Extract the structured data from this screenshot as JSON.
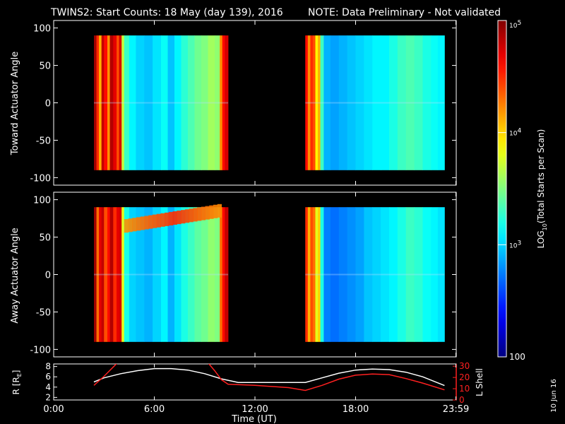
{
  "header": {
    "title": "TWINS2: Start Counts: 18 May (day 139), 2016",
    "note": "NOTE: Data Preliminary - Not validated"
  },
  "colors": {
    "background": "#000000",
    "text": "#ffffff",
    "note": "#ff0000",
    "r_line": "#ffffff",
    "l_line": "#ff2020"
  },
  "x_axis": {
    "label": "Time (UT)",
    "range_hours": [
      0,
      24
    ],
    "ticks": [
      {
        "value": 0,
        "label": "0:00"
      },
      {
        "value": 6,
        "label": "6:00"
      },
      {
        "value": 12,
        "label": "12:00"
      },
      {
        "value": 18,
        "label": "18:00"
      },
      {
        "value": 23.98,
        "label": "23:59"
      }
    ]
  },
  "side_stamp": "10 Jun 16",
  "colorbar": {
    "label": "LOG10(Total Starts per Scan)",
    "label_parts": {
      "a": "LOG",
      "sub": "10",
      "b": "(Total Starts per Scan)"
    },
    "range_log": [
      2,
      5
    ],
    "ticks": [
      {
        "log": 5,
        "label_base": "10",
        "label_exp": "5"
      },
      {
        "log": 4,
        "label_base": "10",
        "label_exp": "4"
      },
      {
        "log": 3,
        "label_base": "10",
        "label_exp": "3"
      },
      {
        "log": 2,
        "label_base": "100",
        "label_exp": ""
      }
    ]
  },
  "chart_data": [
    {
      "type": "heatmap",
      "name": "top-panel",
      "ylabel": "Toward Actuator Angle",
      "ylim": [
        -110,
        110
      ],
      "yticks": [
        100,
        50,
        0,
        -50,
        -100
      ],
      "x_unit": "hours UT",
      "value_unit": "log10 starts per scan",
      "y_extent": [
        -90,
        90
      ],
      "segments": [
        {
          "x_range": [
            2.4,
            10.4
          ],
          "columns": [
            {
              "x": [
                2.4,
                2.55
              ],
              "v": 4.9
            },
            {
              "x": [
                2.55,
                2.7
              ],
              "v": 4.5
            },
            {
              "x": [
                2.7,
                2.85
              ],
              "v": 4.1
            },
            {
              "x": [
                2.85,
                3.0
              ],
              "v": 4.8
            },
            {
              "x": [
                3.0,
                3.2
              ],
              "v": 4.6
            },
            {
              "x": [
                3.2,
                3.35
              ],
              "v": 4.2
            },
            {
              "x": [
                3.35,
                3.55
              ],
              "v": 4.85
            },
            {
              "x": [
                3.55,
                3.75
              ],
              "v": 4.7
            },
            {
              "x": [
                3.75,
                3.9
              ],
              "v": 4.4
            },
            {
              "x": [
                3.9,
                4.05
              ],
              "v": 4.75
            },
            {
              "x": [
                4.05,
                4.2
              ],
              "v": 3.7
            },
            {
              "x": [
                4.2,
                4.5
              ],
              "v": 3.3
            },
            {
              "x": [
                4.5,
                4.9
              ],
              "v": 3.1
            },
            {
              "x": [
                4.9,
                5.4
              ],
              "v": 3.0
            },
            {
              "x": [
                5.4,
                5.9
              ],
              "v": 2.95
            },
            {
              "x": [
                5.9,
                6.4
              ],
              "v": 3.05
            },
            {
              "x": [
                6.4,
                6.8
              ],
              "v": 3.15
            },
            {
              "x": [
                6.8,
                7.2
              ],
              "v": 2.95
            },
            {
              "x": [
                7.2,
                7.6
              ],
              "v": 3.1
            },
            {
              "x": [
                7.6,
                8.0
              ],
              "v": 3.25
            },
            {
              "x": [
                8.0,
                8.4
              ],
              "v": 3.35
            },
            {
              "x": [
                8.4,
                8.8
              ],
              "v": 3.45
            },
            {
              "x": [
                8.8,
                9.2
              ],
              "v": 3.5
            },
            {
              "x": [
                9.2,
                9.6
              ],
              "v": 3.6
            },
            {
              "x": [
                9.6,
                9.9
              ],
              "v": 3.55
            },
            {
              "x": [
                9.9,
                10.05
              ],
              "v": 4.2
            },
            {
              "x": [
                10.05,
                10.2
              ],
              "v": 4.6
            },
            {
              "x": [
                10.2,
                10.4
              ],
              "v": 4.75
            }
          ]
        },
        {
          "x_range": [
            15.0,
            23.3
          ],
          "columns": [
            {
              "x": [
                15.0,
                15.15
              ],
              "v": 4.6
            },
            {
              "x": [
                15.15,
                15.3
              ],
              "v": 4.2
            },
            {
              "x": [
                15.3,
                15.45
              ],
              "v": 4.5
            },
            {
              "x": [
                15.45,
                15.6
              ],
              "v": 4.4
            },
            {
              "x": [
                15.6,
                15.75
              ],
              "v": 3.9
            },
            {
              "x": [
                15.75,
                15.9
              ],
              "v": 4.1
            },
            {
              "x": [
                15.9,
                16.1
              ],
              "v": 3.3
            },
            {
              "x": [
                16.1,
                16.5
              ],
              "v": 2.9
            },
            {
              "x": [
                16.5,
                17.0
              ],
              "v": 2.85
            },
            {
              "x": [
                17.0,
                17.5
              ],
              "v": 2.9
            },
            {
              "x": [
                17.5,
                18.0
              ],
              "v": 2.95
            },
            {
              "x": [
                18.0,
                18.5
              ],
              "v": 3.0
            },
            {
              "x": [
                18.5,
                19.0
              ],
              "v": 3.05
            },
            {
              "x": [
                19.0,
                19.5
              ],
              "v": 3.1
            },
            {
              "x": [
                19.5,
                20.0
              ],
              "v": 3.1
            },
            {
              "x": [
                20.0,
                20.5
              ],
              "v": 3.2
            },
            {
              "x": [
                20.5,
                21.0
              ],
              "v": 3.3
            },
            {
              "x": [
                21.0,
                21.5
              ],
              "v": 3.35
            },
            {
              "x": [
                21.5,
                22.0
              ],
              "v": 3.3
            },
            {
              "x": [
                22.0,
                22.5
              ],
              "v": 3.2
            },
            {
              "x": [
                22.5,
                22.9
              ],
              "v": 3.15
            },
            {
              "x": [
                22.9,
                23.3
              ],
              "v": 3.1
            }
          ]
        }
      ]
    },
    {
      "type": "heatmap",
      "name": "middle-panel",
      "ylabel": "Away Actuator Angle",
      "ylim": [
        -110,
        110
      ],
      "yticks": [
        100,
        50,
        0,
        -50,
        -100
      ],
      "x_unit": "hours UT",
      "value_unit": "log10 starts per scan",
      "y_extent": [
        -90,
        90
      ],
      "segments": [
        {
          "x_range": [
            2.4,
            10.4
          ],
          "columns": [
            {
              "x": [
                2.4,
                2.55
              ],
              "v": 4.9
            },
            {
              "x": [
                2.55,
                2.7
              ],
              "v": 4.3
            },
            {
              "x": [
                2.7,
                2.85
              ],
              "v": 4.7
            },
            {
              "x": [
                2.85,
                3.0
              ],
              "v": 4.8
            },
            {
              "x": [
                3.0,
                3.2
              ],
              "v": 4.4
            },
            {
              "x": [
                3.2,
                3.35
              ],
              "v": 4.6
            },
            {
              "x": [
                3.35,
                3.55
              ],
              "v": 4.85
            },
            {
              "x": [
                3.55,
                3.75
              ],
              "v": 4.5
            },
            {
              "x": [
                3.75,
                3.9
              ],
              "v": 4.7
            },
            {
              "x": [
                3.9,
                4.05
              ],
              "v": 4.75
            },
            {
              "x": [
                4.05,
                4.2
              ],
              "v": 3.8
            },
            {
              "x": [
                4.2,
                4.5
              ],
              "v": 3.2
            },
            {
              "x": [
                4.5,
                4.9
              ],
              "v": 3.0
            },
            {
              "x": [
                4.9,
                5.4
              ],
              "v": 2.95
            },
            {
              "x": [
                5.4,
                5.9
              ],
              "v": 2.9
            },
            {
              "x": [
                5.9,
                6.4
              ],
              "v": 3.0
            },
            {
              "x": [
                6.4,
                6.8
              ],
              "v": 3.1
            },
            {
              "x": [
                6.8,
                7.2
              ],
              "v": 2.9
            },
            {
              "x": [
                7.2,
                7.6
              ],
              "v": 3.05
            },
            {
              "x": [
                7.6,
                8.0
              ],
              "v": 3.2
            },
            {
              "x": [
                8.0,
                8.4
              ],
              "v": 3.3
            },
            {
              "x": [
                8.4,
                8.8
              ],
              "v": 3.4
            },
            {
              "x": [
                8.8,
                9.2
              ],
              "v": 3.45
            },
            {
              "x": [
                9.2,
                9.6
              ],
              "v": 3.55
            },
            {
              "x": [
                9.6,
                9.9
              ],
              "v": 3.5
            },
            {
              "x": [
                9.9,
                10.05
              ],
              "v": 4.3
            },
            {
              "x": [
                10.05,
                10.2
              ],
              "v": 4.6
            },
            {
              "x": [
                10.2,
                10.4
              ],
              "v": 4.8
            }
          ]
        },
        {
          "x_range": [
            15.0,
            23.3
          ],
          "columns": [
            {
              "x": [
                15.0,
                15.15
              ],
              "v": 4.5
            },
            {
              "x": [
                15.15,
                15.3
              ],
              "v": 4.1
            },
            {
              "x": [
                15.3,
                15.45
              ],
              "v": 4.4
            },
            {
              "x": [
                15.45,
                15.6
              ],
              "v": 4.3
            },
            {
              "x": [
                15.6,
                15.75
              ],
              "v": 3.8
            },
            {
              "x": [
                15.75,
                15.9
              ],
              "v": 4.0
            },
            {
              "x": [
                15.9,
                16.1
              ],
              "v": 3.2
            },
            {
              "x": [
                16.1,
                16.5
              ],
              "v": 2.75
            },
            {
              "x": [
                16.5,
                17.0
              ],
              "v": 2.7
            },
            {
              "x": [
                17.0,
                17.5
              ],
              "v": 2.75
            },
            {
              "x": [
                17.5,
                18.0
              ],
              "v": 2.8
            },
            {
              "x": [
                18.0,
                18.5
              ],
              "v": 2.85
            },
            {
              "x": [
                18.5,
                19.0
              ],
              "v": 2.95
            },
            {
              "x": [
                19.0,
                19.5
              ],
              "v": 3.0
            },
            {
              "x": [
                19.5,
                20.0
              ],
              "v": 3.05
            },
            {
              "x": [
                20.0,
                20.5
              ],
              "v": 3.1
            },
            {
              "x": [
                20.5,
                21.0
              ],
              "v": 3.2
            },
            {
              "x": [
                21.0,
                21.5
              ],
              "v": 3.3
            },
            {
              "x": [
                21.5,
                22.0
              ],
              "v": 3.25
            },
            {
              "x": [
                22.0,
                22.5
              ],
              "v": 3.15
            },
            {
              "x": [
                22.5,
                22.9
              ],
              "v": 3.1
            },
            {
              "x": [
                22.9,
                23.3
              ],
              "v": 3.05
            }
          ]
        }
      ],
      "band": {
        "x_range": [
          4.2,
          10.0
        ],
        "y_center_start": 65,
        "y_center_end": 86,
        "half_width": 9,
        "v": 4.5
      }
    },
    {
      "type": "line",
      "name": "orbit-panel",
      "x_unit": "hours UT",
      "xlim": [
        0,
        24
      ],
      "left_axis": {
        "label": "R [RE]",
        "label_parts": {
          "a": "R [R",
          "sub": "E",
          "b": "]"
        },
        "ylim": [
          1.5,
          8.5
        ],
        "ticks": [
          2,
          4,
          6,
          8
        ]
      },
      "right_axis": {
        "label": "L Shell",
        "ylim": [
          0,
          32
        ],
        "ticks": [
          0,
          10,
          20,
          30
        ]
      },
      "series": [
        {
          "name": "R [RE]",
          "axis": "left",
          "x": [
            2.4,
            3.0,
            4.0,
            5.0,
            6.0,
            7.0,
            8.0,
            9.0,
            10.0,
            11.0,
            12.0,
            13.0,
            14.0,
            15.0,
            16.0,
            17.0,
            18.0,
            19.0,
            20.0,
            21.0,
            22.0,
            23.3
          ],
          "y": [
            5.0,
            5.8,
            6.6,
            7.2,
            7.6,
            7.6,
            7.3,
            6.6,
            5.6,
            4.9,
            4.9,
            4.9,
            4.9,
            4.9,
            5.8,
            6.7,
            7.3,
            7.5,
            7.4,
            6.9,
            6.0,
            4.3
          ]
        },
        {
          "name": "L Shell",
          "axis": "right",
          "segments": [
            {
              "x": [
                2.4,
                3.0,
                3.8
              ],
              "y": [
                13,
                21,
                33
              ]
            },
            {
              "x": [
                9.2,
                9.6,
                10.0,
                10.4,
                12.0,
                13.0,
                14.0,
                15.0,
                16.0,
                17.0,
                18.0,
                19.0,
                20.0,
                21.0,
                22.0,
                23.3
              ],
              "y": [
                33,
                26,
                18,
                14,
                13,
                12,
                11,
                8.5,
                13,
                18.5,
                22,
                23,
                22.5,
                19,
                15,
                9
              ]
            }
          ]
        }
      ]
    }
  ]
}
